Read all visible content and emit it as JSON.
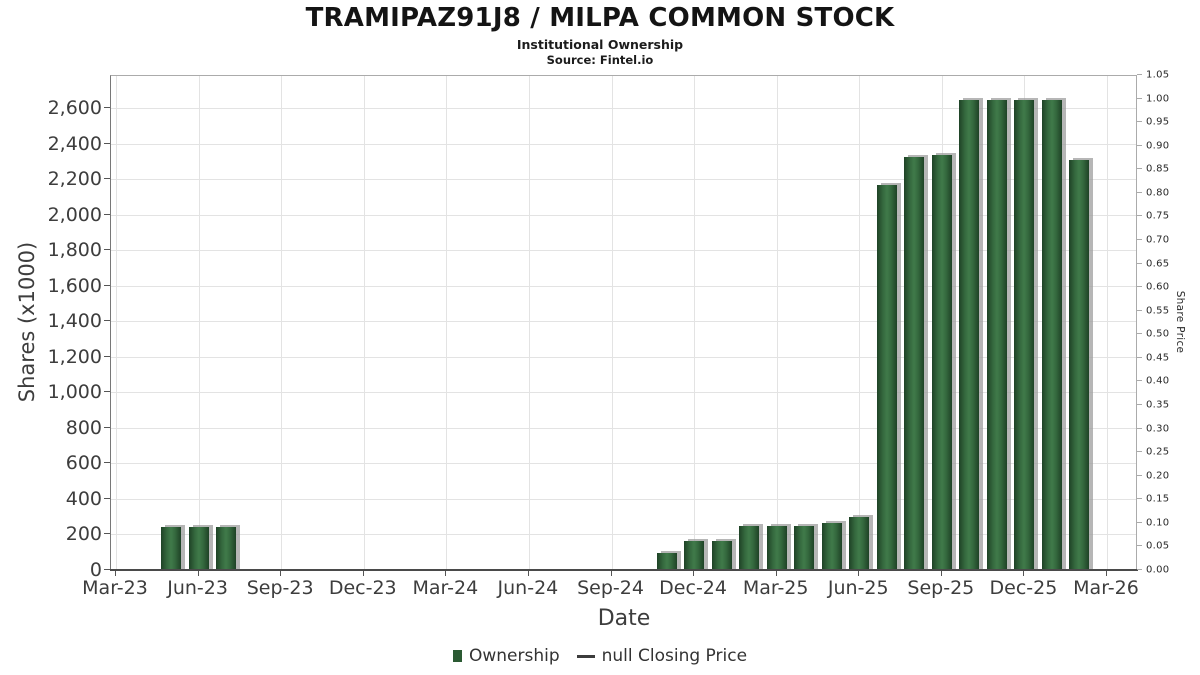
{
  "header": {
    "title": "TRAMIPAZ91J8 / MILPA COMMON STOCK",
    "subtitle": "Institutional Ownership",
    "source": "Source: Fintel.io"
  },
  "axes": {
    "left_label": "Shares (x1000)",
    "bottom_label": "Date",
    "right_label": "Share Price"
  },
  "legend": {
    "items": [
      {
        "label": "Ownership",
        "marker": "square"
      },
      {
        "label": "null Closing Price",
        "marker": "line"
      }
    ]
  },
  "colors": {
    "bar_edge": "#1e4226",
    "bar_mid": "#35693e",
    "bar_center": "#407a4a",
    "bar_shadow": "#9e9e9e",
    "gridline": "#e3e3e3",
    "plot_border": "#ababab",
    "axis_line": "#4a4a4a",
    "tick_text": "#3d3d3d",
    "legend_square": "#2b5a33",
    "legend_dash": "#3c3c3c"
  },
  "chart_data": {
    "type": "bar",
    "title": "TRAMIPAZ91J8 / MILPA COMMON STOCK",
    "subtitle": "Institutional Ownership",
    "source": "Source: Fintel.io",
    "xlabel": "Date",
    "ylabel_left": "Shares (x1000)",
    "ylabel_right": "Share Price",
    "grid": true,
    "legend_position": "bottom-center",
    "x_start_month": "Mar-23",
    "x_end_month": "Mar-26",
    "months_span": 36,
    "x_tick_labels": [
      "Mar-23",
      "Jun-23",
      "Sep-23",
      "Dec-23",
      "Mar-24",
      "Jun-24",
      "Sep-24",
      "Dec-24",
      "Mar-25",
      "Jun-25",
      "Sep-25",
      "Dec-25",
      "Mar-26"
    ],
    "y_left_range": {
      "min": 0,
      "max": 2600,
      "step": 200
    },
    "y_left_ticks": [
      "0",
      "200",
      "400",
      "600",
      "800",
      "1,000",
      "1,200",
      "1,400",
      "1,600",
      "1,800",
      "2,000",
      "2,200",
      "2,400",
      "2,600"
    ],
    "y_right_range": {
      "min": 0.0,
      "max": 1.05,
      "step": 0.05
    },
    "y_right_ticks": [
      "0.00",
      "0.05",
      "0.10",
      "0.15",
      "0.20",
      "0.25",
      "0.30",
      "0.35",
      "0.40",
      "0.45",
      "0.50",
      "0.55",
      "0.60",
      "0.65",
      "0.70",
      "0.75",
      "0.80",
      "0.85",
      "0.90",
      "0.95",
      "1.00",
      "1.05"
    ],
    "series": [
      {
        "name": "Ownership",
        "type": "bar",
        "points": [
          {
            "date": "May-23",
            "month_index": 2,
            "value": 235
          },
          {
            "date": "Jun-23",
            "month_index": 3,
            "value": 235
          },
          {
            "date": "Jul-23",
            "month_index": 4,
            "value": 235
          },
          {
            "date": "Nov-24",
            "month_index": 20,
            "value": 90
          },
          {
            "date": "Dec-24",
            "month_index": 21,
            "value": 160
          },
          {
            "date": "Jan-25",
            "month_index": 22,
            "value": 160
          },
          {
            "date": "Feb-25",
            "month_index": 23,
            "value": 240
          },
          {
            "date": "Mar-25",
            "month_index": 24,
            "value": 240
          },
          {
            "date": "Apr-25",
            "month_index": 25,
            "value": 240
          },
          {
            "date": "May-25",
            "month_index": 26,
            "value": 260
          },
          {
            "date": "Jun-25",
            "month_index": 27,
            "value": 290
          },
          {
            "date": "Jul-25",
            "month_index": 28,
            "value": 2160
          },
          {
            "date": "Aug-25",
            "month_index": 29,
            "value": 2320
          },
          {
            "date": "Sep-25",
            "month_index": 30,
            "value": 2330
          },
          {
            "date": "Oct-25",
            "month_index": 31,
            "value": 2640
          },
          {
            "date": "Nov-25",
            "month_index": 32,
            "value": 2640
          },
          {
            "date": "Dec-25",
            "month_index": 33,
            "value": 2640
          },
          {
            "date": "Jan-26",
            "month_index": 34,
            "value": 2640
          },
          {
            "date": "Feb-26",
            "month_index": 35,
            "value": 2300
          }
        ]
      },
      {
        "name": "null Closing Price",
        "type": "line",
        "points": []
      }
    ]
  }
}
